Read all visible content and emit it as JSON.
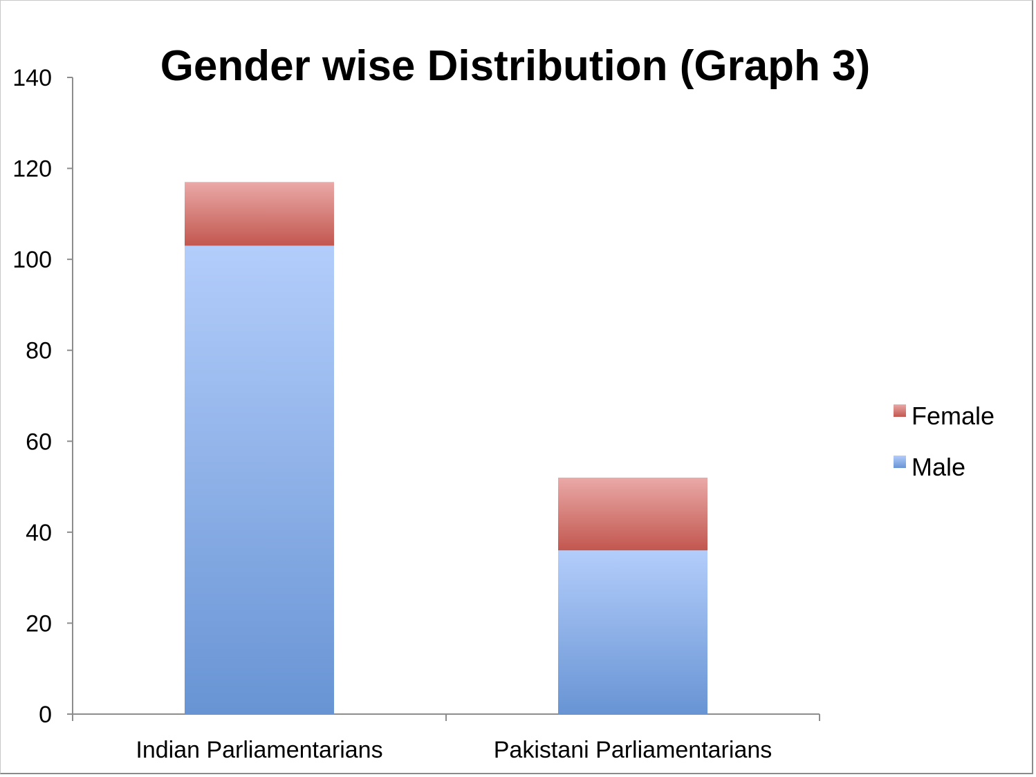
{
  "chart_data": {
    "type": "bar",
    "stacked": true,
    "title": "Gender wise Distribution (Graph 3)",
    "xlabel": "",
    "ylabel": "",
    "categories": [
      "Indian Parliamentarians",
      "Pakistani Parliamentarians"
    ],
    "series": [
      {
        "name": "Male",
        "values": [
          103,
          36
        ],
        "color_top": "#b3cdfb",
        "color_bottom": "#6894d4"
      },
      {
        "name": "Female",
        "values": [
          14,
          16
        ],
        "color_top": "#eaa9a7",
        "color_bottom": "#c2574f"
      }
    ],
    "ylim": [
      0,
      140
    ],
    "yticks": [
      0,
      20,
      40,
      60,
      80,
      100,
      120,
      140
    ],
    "grid": false,
    "legend_position": "right",
    "legend_order": [
      "Female",
      "Male"
    ]
  }
}
